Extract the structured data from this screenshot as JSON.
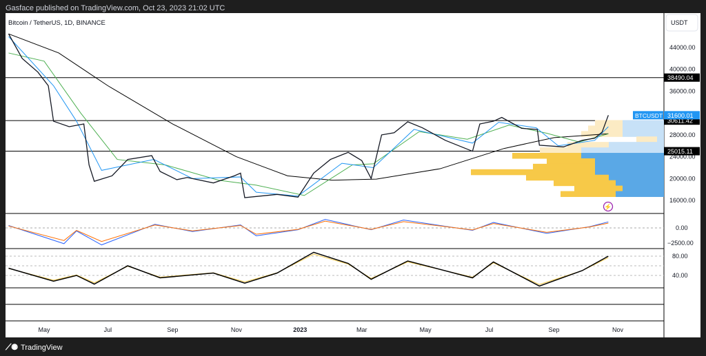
{
  "header": {
    "published": "Gasface published on TradingView.com, Oct 23, 2023 21:02 UTC",
    "symbol_title": "Bitcoin / TetherUS, 1D, BINANCE"
  },
  "price_axis": {
    "currency": "USDT",
    "ticks": [
      "44000.00",
      "40000.00",
      "36000.00",
      "28000.00",
      "24000.00",
      "20000.00",
      "16000.00"
    ],
    "labels": [
      {
        "text": "38490.04",
        "price": 38490.04
      },
      {
        "text": "30611.42",
        "price": 30611.42
      },
      {
        "text": "25015.11",
        "price": 25015.11
      }
    ],
    "current": {
      "symbol": "BTCUSDT",
      "text": "31600.01",
      "price": 31600.01
    }
  },
  "macd_axis": [
    "0.00",
    "−2500.00"
  ],
  "rsi_axis": [
    "80.00",
    "40.00"
  ],
  "time_axis": [
    {
      "t": "May",
      "d": "2022-05-01"
    },
    {
      "t": "Jul",
      "d": "2022-07-01"
    },
    {
      "t": "Sep",
      "d": "2022-09-01"
    },
    {
      "t": "Nov",
      "d": "2022-11-01"
    },
    {
      "t": "2023",
      "d": "2023-01-01"
    },
    {
      "t": "Mar",
      "d": "2023-03-01"
    },
    {
      "t": "May",
      "d": "2023-05-01"
    },
    {
      "t": "Jul",
      "d": "2023-07-01"
    },
    {
      "t": "Sep",
      "d": "2023-09-01"
    },
    {
      "t": "Nov",
      "d": "2023-11-01"
    }
  ],
  "footer": {
    "brand": "TradingView"
  },
  "colors": {
    "price": "#131722",
    "ma_fast": "#2196f3",
    "ma_mid": "#4caf50",
    "ma_slow": "#000000",
    "axis_label": "#000000",
    "accent": "#2196f3",
    "vp_up": "#5aa8e6",
    "vp_down": "#f7c948"
  },
  "chart_data": {
    "type": "line",
    "price": [
      [
        "2022-03-28",
        46500
      ],
      [
        "2022-04-10",
        42000
      ],
      [
        "2022-04-25",
        39500
      ],
      [
        "2022-05-05",
        37000
      ],
      [
        "2022-05-10",
        30500
      ],
      [
        "2022-05-25",
        29500
      ],
      [
        "2022-06-08",
        30000
      ],
      [
        "2022-06-13",
        22500
      ],
      [
        "2022-06-18",
        19500
      ],
      [
        "2022-07-05",
        20500
      ],
      [
        "2022-07-20",
        23500
      ],
      [
        "2022-08-12",
        24200
      ],
      [
        "2022-08-20",
        21300
      ],
      [
        "2022-09-05",
        19800
      ],
      [
        "2022-09-15",
        20200
      ],
      [
        "2022-10-10",
        19200
      ],
      [
        "2022-10-30",
        20500
      ],
      [
        "2022-11-05",
        21000
      ],
      [
        "2022-11-09",
        16500
      ],
      [
        "2022-12-10",
        17100
      ],
      [
        "2022-12-30",
        16600
      ],
      [
        "2023-01-14",
        21000
      ],
      [
        "2023-01-30",
        23500
      ],
      [
        "2023-02-16",
        24800
      ],
      [
        "2023-03-01",
        23300
      ],
      [
        "2023-03-10",
        20000
      ],
      [
        "2023-03-20",
        28000
      ],
      [
        "2023-04-01",
        28400
      ],
      [
        "2023-04-14",
        30400
      ],
      [
        "2023-04-28",
        29300
      ],
      [
        "2023-05-20",
        27000
      ],
      [
        "2023-06-15",
        25000
      ],
      [
        "2023-06-22",
        30000
      ],
      [
        "2023-07-05",
        30500
      ],
      [
        "2023-07-13",
        31200
      ],
      [
        "2023-08-01",
        29200
      ],
      [
        "2023-08-16",
        29000
      ],
      [
        "2023-08-18",
        26100
      ],
      [
        "2023-09-10",
        25800
      ],
      [
        "2023-09-28",
        27000
      ],
      [
        "2023-10-10",
        27400
      ],
      [
        "2023-10-17",
        28500
      ],
      [
        "2023-10-23",
        31600
      ]
    ],
    "ma_fast": [
      [
        "2022-03-28",
        46000
      ],
      [
        "2022-05-10",
        37000
      ],
      [
        "2022-06-01",
        30500
      ],
      [
        "2022-06-25",
        21500
      ],
      [
        "2022-08-14",
        23500
      ],
      [
        "2022-09-20",
        20000
      ],
      [
        "2022-11-05",
        20300
      ],
      [
        "2022-11-20",
        17500
      ],
      [
        "2022-12-30",
        16800
      ],
      [
        "2023-02-10",
        22800
      ],
      [
        "2023-03-12",
        22000
      ],
      [
        "2023-04-20",
        29000
      ],
      [
        "2023-06-15",
        26500
      ],
      [
        "2023-07-10",
        30300
      ],
      [
        "2023-08-15",
        29300
      ],
      [
        "2023-09-05",
        26000
      ],
      [
        "2023-10-10",
        27000
      ],
      [
        "2023-10-23",
        29500
      ]
    ],
    "ma_mid": [
      [
        "2022-03-28",
        43000
      ],
      [
        "2022-05-01",
        41500
      ],
      [
        "2022-06-05",
        32000
      ],
      [
        "2022-07-10",
        23500
      ],
      [
        "2022-08-25",
        22500
      ],
      [
        "2022-10-15",
        19700
      ],
      [
        "2022-11-20",
        18800
      ],
      [
        "2023-01-05",
        16900
      ],
      [
        "2023-02-20",
        22500
      ],
      [
        "2023-03-12",
        22700
      ],
      [
        "2023-04-25",
        28600
      ],
      [
        "2023-06-10",
        27200
      ],
      [
        "2023-07-20",
        29800
      ],
      [
        "2023-08-25",
        28300
      ],
      [
        "2023-09-25",
        26700
      ],
      [
        "2023-10-23",
        28200
      ]
    ],
    "ma_slow": [
      [
        "2022-03-28",
        46500
      ],
      [
        "2022-05-15",
        43000
      ],
      [
        "2022-07-01",
        37000
      ],
      [
        "2022-09-01",
        30000
      ],
      [
        "2022-11-01",
        24000
      ],
      [
        "2022-12-20",
        20500
      ],
      [
        "2023-02-01",
        19700
      ],
      [
        "2023-03-15",
        19900
      ],
      [
        "2023-05-15",
        21800
      ],
      [
        "2023-07-15",
        25500
      ],
      [
        "2023-09-01",
        27500
      ],
      [
        "2023-10-23",
        28200
      ]
    ],
    "h_lines": [
      38490.04,
      30611.42,
      25015.11
    ],
    "price_range": [
      14500,
      47500
    ],
    "macd": [
      [
        "2022-03-28",
        400
      ],
      [
        "2022-05-20",
        -2600
      ],
      [
        "2022-06-01",
        -500
      ],
      [
        "2022-06-25",
        -2800
      ],
      [
        "2022-08-15",
        600
      ],
      [
        "2022-09-20",
        -600
      ],
      [
        "2022-11-05",
        500
      ],
      [
        "2022-11-20",
        -1300
      ],
      [
        "2022-12-30",
        -300
      ],
      [
        "2023-01-25",
        1400
      ],
      [
        "2023-03-10",
        -300
      ],
      [
        "2023-04-10",
        1300
      ],
      [
        "2023-06-15",
        -400
      ],
      [
        "2023-07-05",
        900
      ],
      [
        "2023-08-25",
        -900
      ],
      [
        "2023-10-05",
        200
      ],
      [
        "2023-10-23",
        1000
      ]
    ],
    "rsi": [
      [
        "2022-03-28",
        55
      ],
      [
        "2022-05-10",
        28
      ],
      [
        "2022-06-01",
        40
      ],
      [
        "2022-06-18",
        22
      ],
      [
        "2022-07-20",
        60
      ],
      [
        "2022-08-20",
        35
      ],
      [
        "2022-10-10",
        45
      ],
      [
        "2022-11-09",
        24
      ],
      [
        "2022-12-10",
        45
      ],
      [
        "2023-01-14",
        88
      ],
      [
        "2023-02-16",
        65
      ],
      [
        "2023-03-10",
        32
      ],
      [
        "2023-04-14",
        70
      ],
      [
        "2023-06-15",
        35
      ],
      [
        "2023-07-05",
        68
      ],
      [
        "2023-08-18",
        18
      ],
      [
        "2023-09-28",
        50
      ],
      [
        "2023-10-23",
        80
      ]
    ],
    "volume_profile": [
      [
        30200,
        4,
        6
      ],
      [
        29200,
        5,
        6
      ],
      [
        28200,
        6,
        6
      ],
      [
        27200,
        3,
        1
      ],
      [
        26200,
        6,
        8
      ],
      [
        25200,
        6,
        12
      ],
      [
        24200,
        10,
        12
      ],
      [
        23200,
        7,
        10
      ],
      [
        22200,
        9,
        10
      ],
      [
        21200,
        18,
        10
      ],
      [
        20200,
        12,
        8
      ],
      [
        19200,
        9,
        7
      ],
      [
        18200,
        7,
        6
      ],
      [
        17200,
        8,
        7
      ]
    ]
  }
}
